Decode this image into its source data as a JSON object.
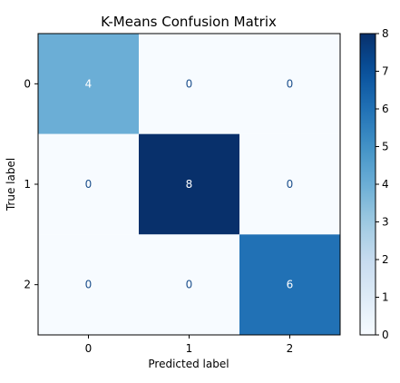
{
  "chart_data": {
    "type": "heatmap",
    "title": "K-Means Confusion Matrix",
    "xlabel": "Predicted label",
    "ylabel": "True label",
    "x_categories": [
      "0",
      "1",
      "2"
    ],
    "y_categories": [
      "0",
      "1",
      "2"
    ],
    "matrix": [
      [
        4,
        0,
        0
      ],
      [
        0,
        8,
        0
      ],
      [
        0,
        0,
        6
      ]
    ],
    "colormap": "Blues",
    "colorbar": {
      "range": [
        0,
        8
      ],
      "ticks": [
        0,
        1,
        2,
        3,
        4,
        5,
        6,
        7,
        8
      ],
      "position": "right"
    },
    "text_color_light": "#ffffff",
    "text_color_dark": "#1c4f8c"
  }
}
